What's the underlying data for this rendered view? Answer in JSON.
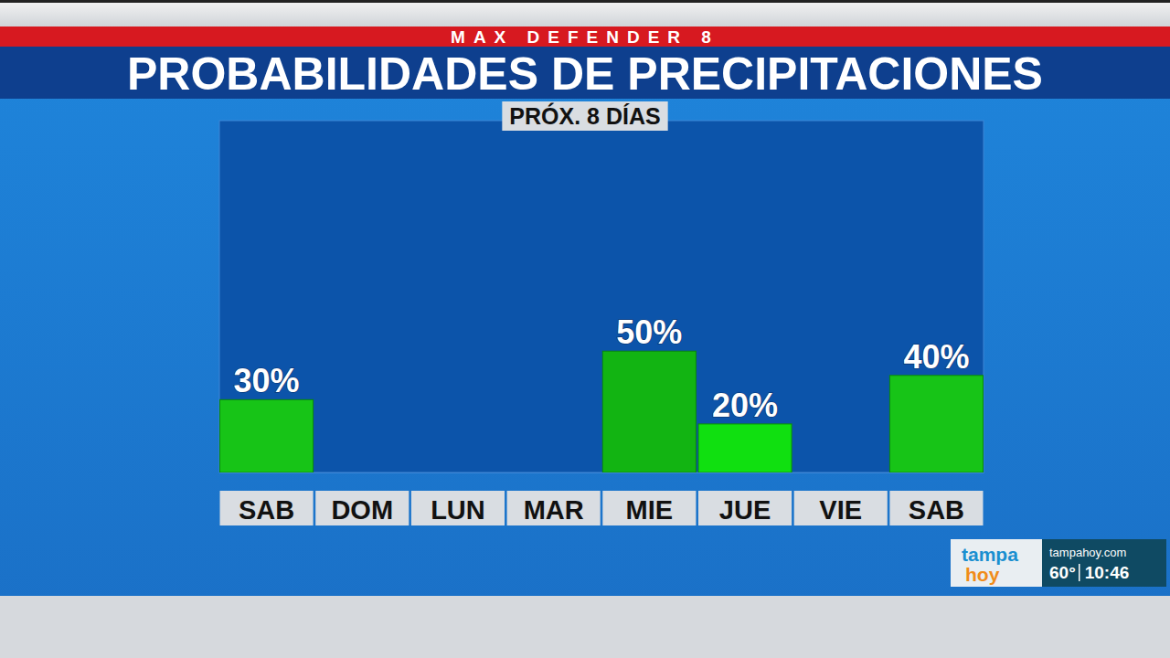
{
  "banner": "MAX DEFENDER 8",
  "chart_data": {
    "type": "bar",
    "title": "PROBABILIDADES DE PRECIPITACIONES",
    "subtitle": "PRÓX. 8 DÍAS",
    "categories": [
      "SAB",
      "DOM",
      "LUN",
      "MAR",
      "MIE",
      "JUE",
      "VIE",
      "SAB"
    ],
    "values": [
      30,
      null,
      null,
      null,
      50,
      20,
      null,
      40
    ],
    "value_labels": [
      "30%",
      null,
      null,
      null,
      "50%",
      "20%",
      null,
      "40%"
    ],
    "colors": [
      "#17c417",
      "#17c417",
      "#17c417",
      "#17c417",
      "#12b412",
      "#10e010",
      "#17c417",
      "#17c417"
    ],
    "ylim": [
      0,
      145
    ],
    "yticks": [],
    "grid": false,
    "data_labels": true,
    "tick_labels": "x"
  },
  "station": {
    "logo": [
      "tampa",
      "hoy"
    ],
    "website": "tampahoy.com",
    "temperature": "60°",
    "time": "10:46"
  }
}
